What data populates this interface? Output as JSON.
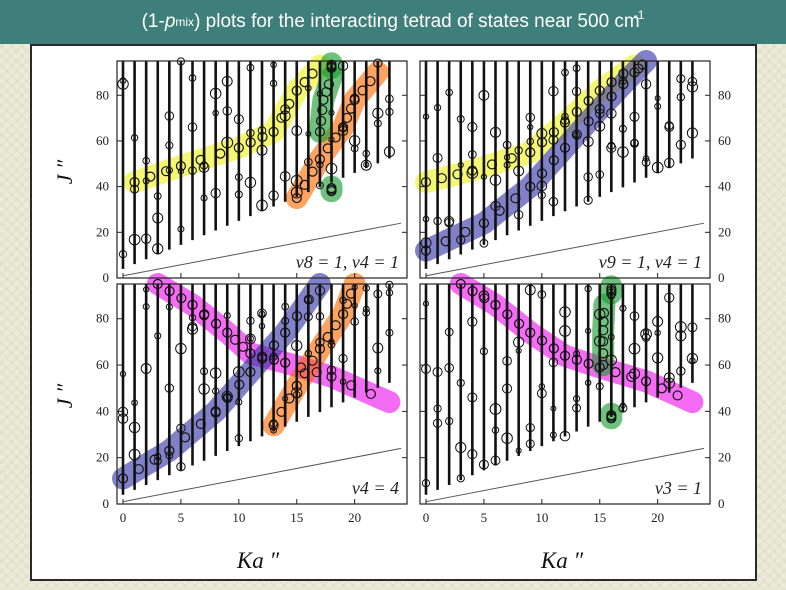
{
  "title": {
    "prefix": "(1-",
    "p": "p",
    "sub": "mix",
    "rest": ") plots for the interacting tetrad of states near 500 cm",
    "sup": "-1"
  },
  "y_axis_label": "J ″",
  "x_axis_label": "Ka ″",
  "chart_data": [
    {
      "type": "scatter",
      "panel": "top-left",
      "label": "v8 = 1, v4 = 1",
      "xticks": [
        0,
        5,
        10,
        15,
        20
      ],
      "yticks": [
        0,
        20,
        40,
        60,
        80
      ],
      "xlim": [
        0,
        24
      ],
      "ylim": [
        0,
        95
      ],
      "highlight_bands": [
        {
          "color": "#f0f020",
          "points": [
            [
              1,
              42
            ],
            [
              5,
              49
            ],
            [
              10,
              57
            ],
            [
              13,
              64
            ],
            [
              15,
              82
            ],
            [
              17,
              93
            ]
          ]
        },
        {
          "color": "#ff6a00",
          "points": [
            [
              15,
              35
            ],
            [
              17,
              52
            ],
            [
              19,
              66
            ],
            [
              20,
              78
            ],
            [
              22,
              90
            ]
          ]
        },
        {
          "color": "#169b2e",
          "points": [
            [
              17,
              64
            ],
            [
              17.3,
              78
            ],
            [
              18,
              88
            ]
          ]
        },
        {
          "color": "#169b2e",
          "points": [
            [
              18,
              38
            ],
            [
              18,
              40
            ]
          ]
        },
        {
          "color": "#169b2e",
          "points": [
            [
              18,
              92
            ],
            [
              18,
              94
            ]
          ]
        }
      ]
    },
    {
      "type": "scatter",
      "panel": "top-right",
      "label": "v9 = 1, v4 = 1",
      "xticks": [
        0,
        5,
        10,
        15,
        20
      ],
      "yticks": [
        0,
        20,
        40,
        60,
        80
      ],
      "xlim": [
        0,
        24
      ],
      "ylim": [
        0,
        95
      ],
      "highlight_bands": [
        {
          "color": "#f0f020",
          "points": [
            [
              0,
              42
            ],
            [
              4,
              47
            ],
            [
              9,
              55
            ],
            [
              12,
              68
            ],
            [
              15,
              82
            ],
            [
              18,
              93
            ]
          ]
        },
        {
          "color": "#3434a8",
          "points": [
            [
              0,
              12
            ],
            [
              5,
              24
            ],
            [
              9,
              40
            ],
            [
              12,
              57
            ],
            [
              15,
              74
            ],
            [
              18,
              90
            ],
            [
              19,
              95
            ]
          ]
        }
      ]
    },
    {
      "type": "scatter",
      "panel": "bottom-left",
      "label": "v4 = 4",
      "xticks": [
        0,
        5,
        10,
        15,
        20
      ],
      "yticks": [
        0,
        20,
        40,
        60,
        80
      ],
      "xlim": [
        0,
        24
      ],
      "ylim": [
        0,
        95
      ],
      "highlight_bands": [
        {
          "color": "#ee10ee",
          "points": [
            [
              3,
              95
            ],
            [
              6,
              86
            ],
            [
              9,
              74
            ],
            [
              11,
              65
            ],
            [
              14,
              61
            ],
            [
              18,
              55
            ],
            [
              23,
              44
            ]
          ]
        },
        {
          "color": "#3434a8",
          "points": [
            [
              0,
              11
            ],
            [
              4,
              23
            ],
            [
              8,
              40
            ],
            [
              11,
              57
            ],
            [
              14,
              74
            ],
            [
              17,
              95
            ]
          ]
        },
        {
          "color": "#ff6a00",
          "points": [
            [
              13,
              34
            ],
            [
              15,
              51
            ],
            [
              17,
              67
            ],
            [
              19,
              82
            ],
            [
              20,
              95
            ]
          ]
        }
      ]
    },
    {
      "type": "scatter",
      "panel": "bottom-right",
      "label": "v3 = 1",
      "xticks": [
        0,
        5,
        10,
        15,
        20
      ],
      "yticks": [
        0,
        20,
        40,
        60,
        80
      ],
      "xlim": [
        0,
        24
      ],
      "ylim": [
        0,
        95
      ],
      "highlight_bands": [
        {
          "color": "#ee10ee",
          "points": [
            [
              3,
              95
            ],
            [
              6,
              86
            ],
            [
              9,
              74
            ],
            [
              12,
              64
            ],
            [
              15,
              59
            ],
            [
              19,
              53
            ],
            [
              23,
              44
            ]
          ]
        },
        {
          "color": "#169b2e",
          "points": [
            [
              15.3,
              60
            ],
            [
              15.3,
              75
            ],
            [
              15.4,
              86
            ]
          ]
        },
        {
          "color": "#169b2e",
          "points": [
            [
              16,
              91
            ],
            [
              16,
              94
            ]
          ]
        },
        {
          "color": "#169b2e",
          "points": [
            [
              16,
              37
            ],
            [
              16,
              39
            ]
          ]
        }
      ]
    }
  ]
}
